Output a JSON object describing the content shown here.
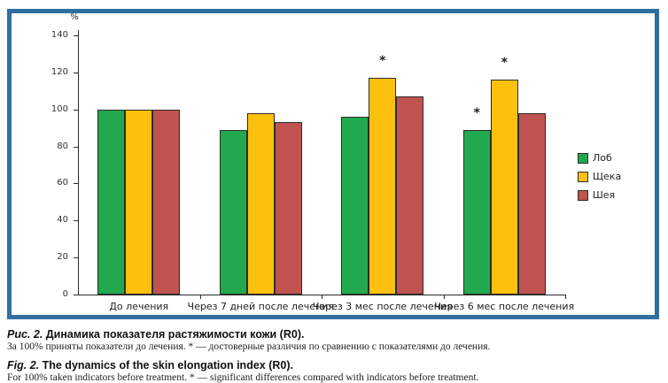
{
  "figure": {
    "panel_border_color": "#2e6f9f",
    "captions": {
      "ru_label": "Рис. 2.",
      "ru_title": "Динамика показателя растяжимости кожи (R0).",
      "ru_note": "За 100% приняты показатели до лечения. * — достоверные различия по сравнению с показателями до лечения.",
      "en_label": "Fig. 2.",
      "en_title": "The dynamics of the skin elongation index (R0).",
      "en_note": "For 100% taken indicators before treatment. * — significant differences compared with indicators before treatment."
    }
  },
  "chart_data": {
    "type": "bar",
    "title": "",
    "ylabel": "%",
    "xlabel": "",
    "ylim": [
      0,
      140
    ],
    "yticks": [
      0,
      20,
      40,
      60,
      80,
      100,
      120,
      140
    ],
    "grid": false,
    "legend_position": "right",
    "bar_outline_color": "#2b2b2b",
    "categories": [
      "До лечения",
      "Через 7 дней после лечения",
      "Через 3 мес после лечения",
      "Через 6 мес после лечения"
    ],
    "series": [
      {
        "name": "Лоб",
        "color": "#22a94e",
        "values": [
          100,
          89,
          96,
          89
        ]
      },
      {
        "name": "Щека",
        "color": "#fcc10e",
        "values": [
          100,
          98,
          117,
          116
        ]
      },
      {
        "name": "Шея",
        "color": "#c0534f",
        "values": [
          100,
          93,
          107,
          98
        ]
      }
    ],
    "annotations": [
      {
        "symbol": "*",
        "series_index": 1,
        "category_index": 2
      },
      {
        "symbol": "*",
        "series_index": 0,
        "category_index": 3
      },
      {
        "symbol": "*",
        "series_index": 1,
        "category_index": 3
      }
    ]
  }
}
